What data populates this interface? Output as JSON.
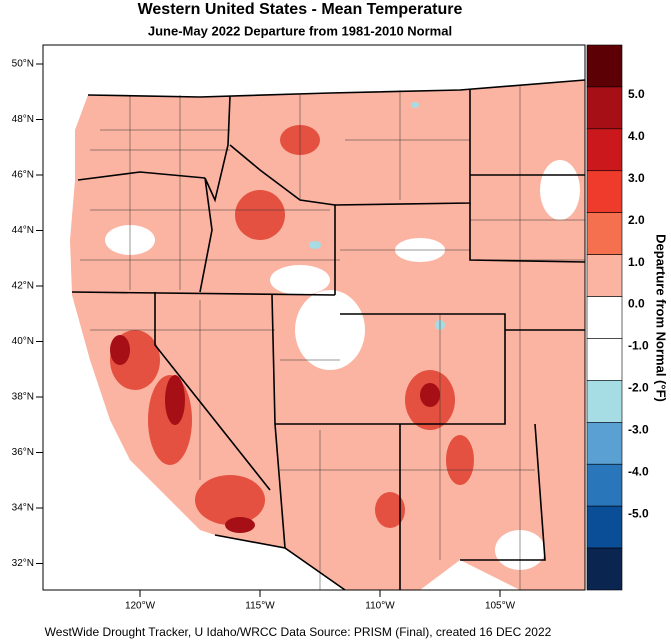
{
  "title": "Western United States - Mean Temperature",
  "subtitle": "June-May 2022  Departure from 1981-2010 Normal",
  "lat_labels": [
    "50°N",
    "48°N",
    "46°N",
    "44°N",
    "42°N",
    "40°N",
    "38°N",
    "36°N",
    "34°N",
    "32°N"
  ],
  "lon_labels": [
    "120°W",
    "115°W",
    "110°W",
    "105°W"
  ],
  "colorbar": {
    "title": "Departure from Normal (°F)",
    "labels": [
      "5.0",
      "4.0",
      "3.0",
      "2.0",
      "1.0",
      "0.0",
      "-1.0",
      "-2.0",
      "-3.0",
      "-4.0",
      "-5.0"
    ],
    "colors": [
      "#5c0006",
      "#a50f15",
      "#cb181d",
      "#ef3b2c",
      "#f4704f",
      "#fcb4a2",
      "#ffffff",
      "#ffffff",
      "#a6dce4",
      "#5aa0d2",
      "#2a76bb",
      "#0b4e98",
      "#0a2550"
    ]
  },
  "footer": "WestWide Drought Tracker, U Idaho/WRCC Data Source: PRISM (Final), created 16 DEC 2022"
}
